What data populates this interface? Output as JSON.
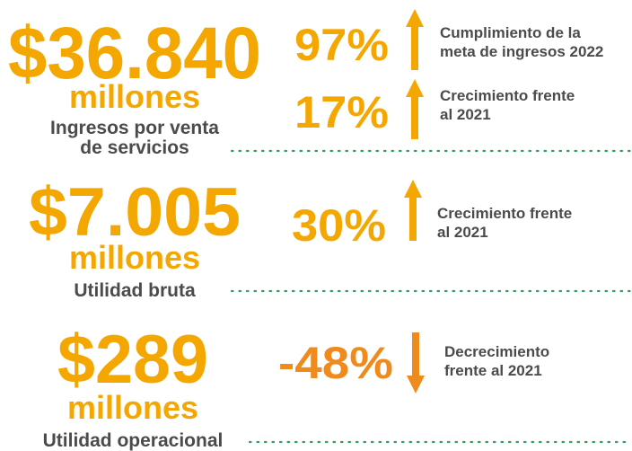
{
  "blocks": [
    {
      "amount": "$36.840",
      "unit": "millones",
      "label": [
        "Ingresos por venta",
        "de servicios"
      ],
      "indicators": [
        {
          "percent": "97%",
          "text": [
            "Cumplimiento de la",
            "meta de ingresos 2022"
          ]
        },
        {
          "percent": "17%",
          "text": [
            "Crecimiento frente",
            "al 2021"
          ]
        }
      ]
    },
    {
      "amount": "$7.005",
      "unit": "millones",
      "label": [
        "Utilidad bruta"
      ],
      "indicators": [
        {
          "percent": "30%",
          "text": [
            "Crecimiento frente",
            "al 2021"
          ]
        }
      ]
    },
    {
      "amount": "$289",
      "unit": "millones",
      "label": [
        "Utilidad operacional"
      ],
      "indicators": [
        {
          "percent": "-48%",
          "text": [
            "Decrecimiento",
            "frente al 2021"
          ]
        }
      ]
    }
  ]
}
